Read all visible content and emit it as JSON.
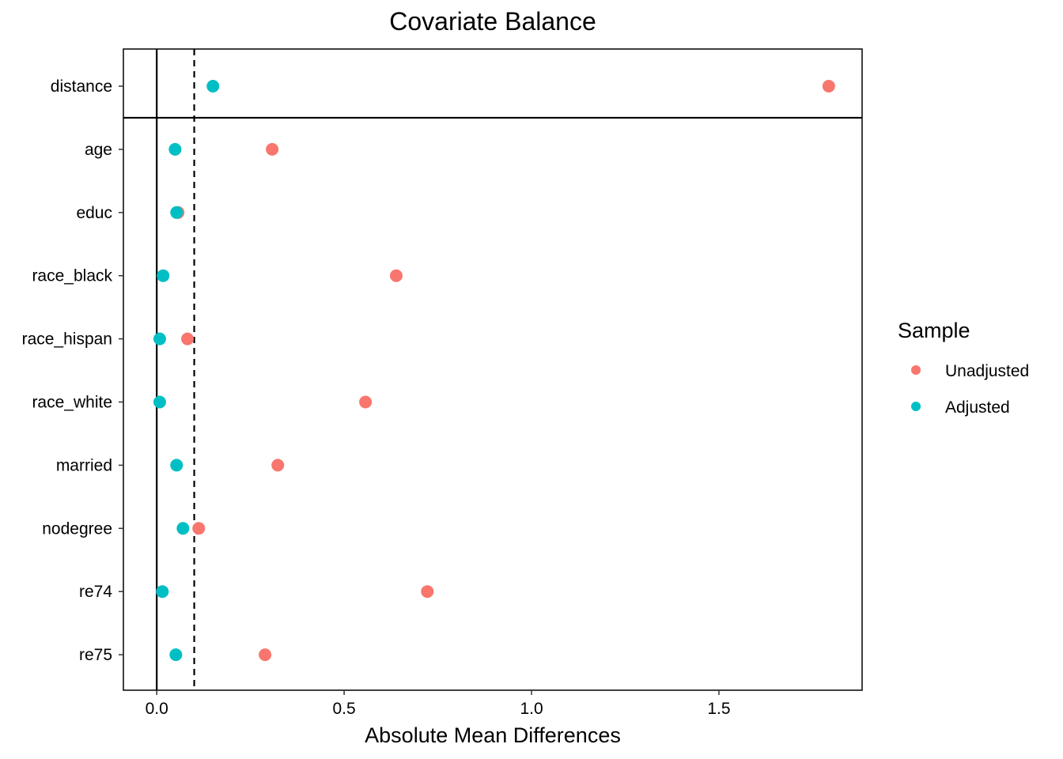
{
  "chart_data": {
    "type": "scatter",
    "title": "Covariate Balance",
    "xlabel": "Absolute Mean Differences",
    "ylabel": "",
    "xlim": [
      -0.089,
      1.882
    ],
    "xticks": [
      0.0,
      0.5,
      1.0,
      1.5
    ],
    "xtick_labels": [
      "0.0",
      "0.5",
      "1.0",
      "1.5"
    ],
    "reference_lines": {
      "solid": 0,
      "dashed_threshold": 0.1
    },
    "grid": false,
    "categories": [
      "distance",
      "age",
      "educ",
      "race_black",
      "race_hispan",
      "race_white",
      "married",
      "nodegree",
      "re74",
      "re75"
    ],
    "separator_after": "distance",
    "series": [
      {
        "name": "Unadjusted",
        "color": "#F8766D",
        "values": [
          1.793,
          0.308,
          0.057,
          0.639,
          0.082,
          0.557,
          0.323,
          0.112,
          0.722,
          0.289
        ]
      },
      {
        "name": "Adjusted",
        "color": "#00BFC4",
        "values": [
          0.15,
          0.049,
          0.053,
          0.017,
          0.008,
          0.008,
          0.053,
          0.07,
          0.015,
          0.051
        ]
      }
    ],
    "legend": {
      "title": "Sample",
      "placement": "right"
    }
  }
}
